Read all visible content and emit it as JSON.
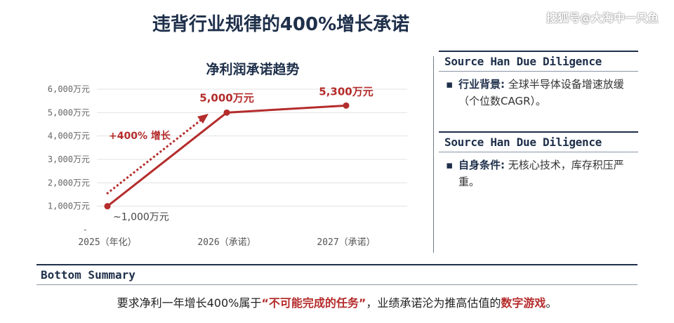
{
  "page_title": "违背行业规律的400%增长承诺",
  "watermark": "搜狐号@大海中一只鱼",
  "chart_data": {
    "type": "line",
    "title": "净利润承诺趋势",
    "categories": [
      "2025（年化）",
      "2026（承诺）",
      "2027（承诺）"
    ],
    "series": [
      {
        "values": [
          1000,
          5000,
          5300
        ]
      }
    ],
    "data_labels": [
      "~1,000万元",
      "5,000万元",
      "5,300万元"
    ],
    "y_ticks": [
      {
        "value": 0,
        "label": "-"
      },
      {
        "value": 1000,
        "label": "1,000万元"
      },
      {
        "value": 2000,
        "label": "2,000万元"
      },
      {
        "value": 3000,
        "label": "3,000万元"
      },
      {
        "value": 4000,
        "label": "4,000万元"
      },
      {
        "value": 5000,
        "label": "5,000万元"
      },
      {
        "value": 6000,
        "label": "6,000万元"
      }
    ],
    "ylim": [
      0,
      6000
    ],
    "grid": true,
    "annotation": "+400% 增长",
    "colors": {
      "line": "#b52c2c",
      "grid": "#e3e3e3",
      "axis_text": "#666666"
    }
  },
  "side": {
    "sections": [
      {
        "heading": "Source Han Due Diligence",
        "key": "行业背景:",
        "text": " 全球半导体设备增速放缓（个位数CAGR）。"
      },
      {
        "heading": "Source Han Due Diligence",
        "key": "自身条件:",
        "text": " 无核心技术，库存积压严重。"
      }
    ]
  },
  "bottom": {
    "heading": "Bottom Summary",
    "text_before": "要求净利一年增长400%属于",
    "highlight1": "“不可能完成的任务”",
    "text_middle": "，业绩承诺沦为推高估值的",
    "highlight2": "数字游戏",
    "text_after": "。"
  }
}
